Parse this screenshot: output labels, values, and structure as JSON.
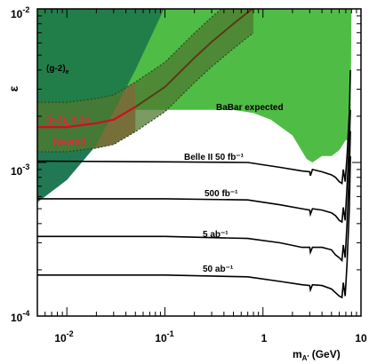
{
  "chart_data": {
    "type": "area",
    "title": "",
    "xlabel": "m_{A'} (GeV)",
    "ylabel": "ε",
    "xscale": "log",
    "yscale": "log",
    "xlim": [
      0.005,
      10
    ],
    "ylim": [
      0.0001,
      0.01
    ],
    "grid": false,
    "x_tick_labels": [
      {
        "value": 0.01,
        "base": "10",
        "exp": "-2"
      },
      {
        "value": 0.1,
        "base": "10",
        "exp": "-1"
      },
      {
        "value": 1,
        "base": "1",
        "exp": ""
      },
      {
        "value": 10,
        "base": "10",
        "exp": ""
      }
    ],
    "y_tick_labels": [
      {
        "value": 0.01,
        "base": "10",
        "exp": "-2"
      },
      {
        "value": 0.001,
        "base": "10",
        "exp": "-3"
      },
      {
        "value": 0.0001,
        "base": "10",
        "exp": "-4"
      }
    ],
    "axis_title": {
      "x_base": "m",
      "x_sub": "A'",
      "x_unit": " (GeV)",
      "y": "ε"
    },
    "region_labels": {
      "g2e": {
        "base": "(g-2)",
        "sub": "e"
      },
      "g2mu": {
        "base": "(g-2)",
        "sub": "μ",
        "suffix": " ± 2σ"
      },
      "favored": "favored",
      "babar": "BaBar expected"
    },
    "colors": {
      "g2e": "#1f7a4a",
      "babar": "#4fbd45",
      "g2mu_band": "#4d7a30",
      "g2mu_band_edge": "#2a4a18",
      "blue": "#4a61f2",
      "red": "#f2515a",
      "favored_label": "#e8273a",
      "curve": "#000000"
    },
    "regions": {
      "g2e_excluded": {
        "boundary": [
          [
            0.005,
            0.00055
          ],
          [
            0.01,
            0.00077
          ],
          [
            0.02,
            0.0013
          ],
          [
            0.05,
            0.004
          ],
          [
            0.1,
            0.0103
          ]
        ]
      },
      "babar_expected": {
        "lower": [
          [
            0.005,
            0.0022
          ],
          [
            0.5,
            0.0022
          ],
          [
            0.8,
            0.0021
          ],
          [
            1.2,
            0.0019
          ],
          [
            2.0,
            0.0015
          ],
          [
            2.8,
            0.00105
          ],
          [
            3.2,
            0.001
          ],
          [
            4.0,
            0.0011
          ],
          [
            5.0,
            0.0011
          ],
          [
            6.0,
            0.0012
          ],
          [
            7.0,
            0.0014
          ],
          [
            7.8,
            0.0014
          ],
          [
            8.0,
            0.01
          ]
        ]
      },
      "g2mu_band": {
        "center": [
          [
            0.005,
            0.0017
          ],
          [
            0.01,
            0.0017
          ],
          [
            0.02,
            0.0018
          ],
          [
            0.03,
            0.0019
          ],
          [
            0.05,
            0.0023
          ],
          [
            0.1,
            0.0031
          ],
          [
            0.2,
            0.0048
          ],
          [
            0.3,
            0.0061
          ],
          [
            0.5,
            0.008
          ],
          [
            0.7,
            0.0095
          ],
          [
            0.8,
            0.0101
          ]
        ],
        "half_width_factor": 1.45
      }
    },
    "series": [
      {
        "name": "Belle II 50 fb⁻¹",
        "exp": "-1",
        "points": [
          [
            0.005,
            0.00102
          ],
          [
            0.1,
            0.00101
          ],
          [
            0.7,
            0.001
          ],
          [
            1.5,
            0.00093
          ],
          [
            2.5,
            0.00088
          ],
          [
            3.0,
            0.00087
          ],
          [
            3.05,
            0.00082
          ],
          [
            3.2,
            0.0009
          ],
          [
            4.0,
            0.00087
          ],
          [
            5.0,
            0.00083
          ],
          [
            5.5,
            0.0008
          ],
          [
            6.0,
            0.00075
          ],
          [
            6.4,
            0.00073
          ],
          [
            6.6,
            0.0009
          ],
          [
            6.9,
            0.00075
          ],
          [
            7.2,
            0.0011
          ],
          [
            7.6,
            0.0021
          ],
          [
            7.8,
            0.004
          ]
        ]
      },
      {
        "name": "500 fb⁻¹",
        "exp": "-1",
        "points": [
          [
            0.005,
            0.00058
          ],
          [
            0.1,
            0.00058
          ],
          [
            0.7,
            0.00057
          ],
          [
            1.5,
            0.00053
          ],
          [
            2.5,
            0.0005
          ],
          [
            3.0,
            0.00049
          ],
          [
            3.05,
            0.00046
          ],
          [
            3.2,
            0.0005
          ],
          [
            4.0,
            0.00049
          ],
          [
            5.0,
            0.00047
          ],
          [
            5.5,
            0.00045
          ],
          [
            6.0,
            0.00042
          ],
          [
            6.4,
            0.00041
          ],
          [
            6.6,
            0.00051
          ],
          [
            6.9,
            0.00042
          ],
          [
            7.2,
            0.0007
          ],
          [
            7.6,
            0.0014
          ],
          [
            7.8,
            0.0022
          ]
        ]
      },
      {
        "name": "5 ab⁻¹",
        "exp": "-1",
        "points": [
          [
            0.005,
            0.00033
          ],
          [
            0.1,
            0.00033
          ],
          [
            0.7,
            0.00032
          ],
          [
            1.5,
            0.0003
          ],
          [
            2.5,
            0.00028
          ],
          [
            3.0,
            0.00028
          ],
          [
            3.05,
            0.00026
          ],
          [
            3.2,
            0.00028
          ],
          [
            4.0,
            0.00028
          ],
          [
            5.0,
            0.00027
          ],
          [
            5.5,
            0.00025
          ],
          [
            6.0,
            0.00024
          ],
          [
            6.4,
            0.00023
          ],
          [
            6.6,
            0.00029
          ],
          [
            6.9,
            0.00024
          ],
          [
            7.2,
            0.0004
          ],
          [
            7.6,
            0.0009
          ],
          [
            7.8,
            0.0016
          ]
        ]
      },
      {
        "name": "50 ab⁻¹",
        "exp": "-1",
        "points": [
          [
            0.005,
            0.000185
          ],
          [
            0.1,
            0.000185
          ],
          [
            0.7,
            0.00018
          ],
          [
            1.5,
            0.000168
          ],
          [
            2.5,
            0.00016
          ],
          [
            3.0,
            0.000158
          ],
          [
            3.05,
            0.000148
          ],
          [
            3.2,
            0.00016
          ],
          [
            4.0,
            0.000158
          ],
          [
            5.0,
            0.00015
          ],
          [
            5.5,
            0.000142
          ],
          [
            6.0,
            0.000135
          ],
          [
            6.4,
            0.000132
          ],
          [
            6.6,
            0.000165
          ],
          [
            6.9,
            0.000135
          ],
          [
            7.2,
            0.00022
          ],
          [
            7.6,
            0.0005
          ],
          [
            7.8,
            0.0011
          ]
        ]
      }
    ]
  }
}
